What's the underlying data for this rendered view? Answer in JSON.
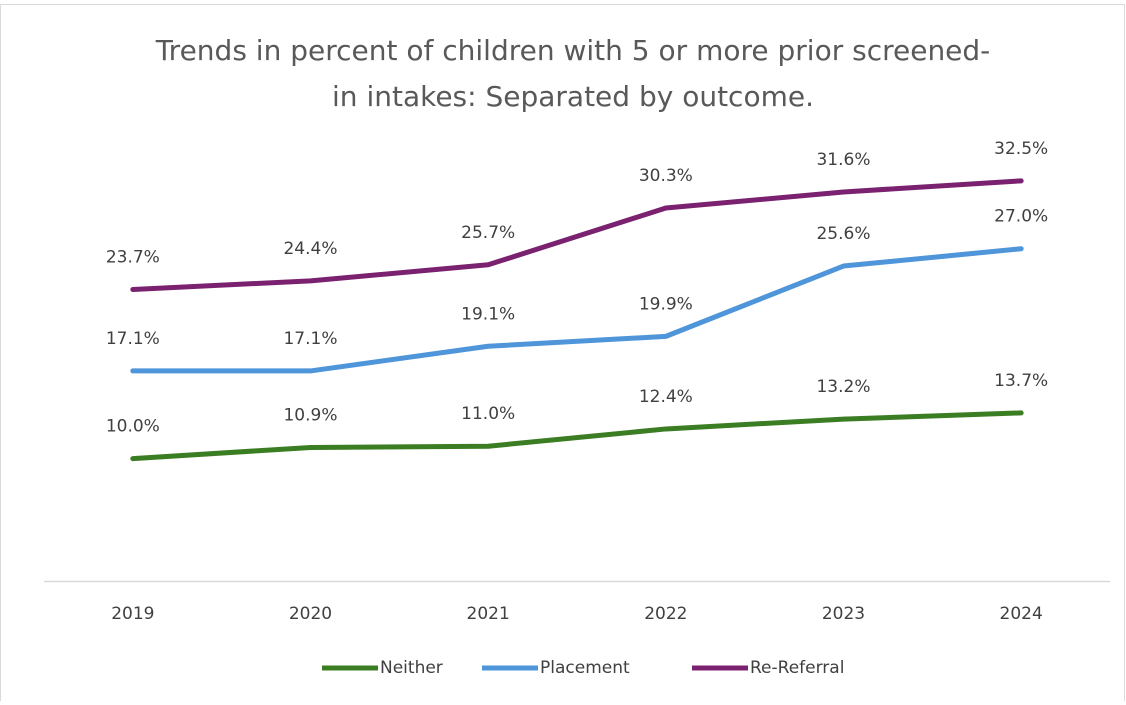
{
  "chart_data": {
    "type": "line",
    "title": [
      "Trends in percent of children with 5 or more prior screened-",
      "in intakes: Separated by outcome."
    ],
    "categories": [
      "2019",
      "2020",
      "2021",
      "2022",
      "2023",
      "2024"
    ],
    "ylim": [
      0,
      35
    ],
    "legend": "bottom",
    "series": [
      {
        "name": "Neither",
        "color": "#3b7d23",
        "values": [
          10.0,
          10.9,
          11.0,
          12.4,
          13.2,
          13.7
        ],
        "value_labels": [
          "10.0%",
          "10.9%",
          "11.0%",
          "12.4%",
          "13.2%",
          "13.7%"
        ]
      },
      {
        "name": "Placement",
        "color": "#4e95d9",
        "values": [
          17.1,
          17.1,
          19.1,
          19.9,
          25.6,
          27.0
        ],
        "value_labels": [
          "17.1%",
          "17.1%",
          "19.1%",
          "19.9%",
          "25.6%",
          "27.0%"
        ]
      },
      {
        "name": "Re-Referral",
        "color": "#7a2270",
        "values": [
          23.7,
          24.4,
          25.7,
          30.3,
          31.6,
          32.5
        ],
        "value_labels": [
          "23.7%",
          "24.4%",
          "25.7%",
          "30.3%",
          "31.6%",
          "32.5%"
        ]
      }
    ]
  }
}
